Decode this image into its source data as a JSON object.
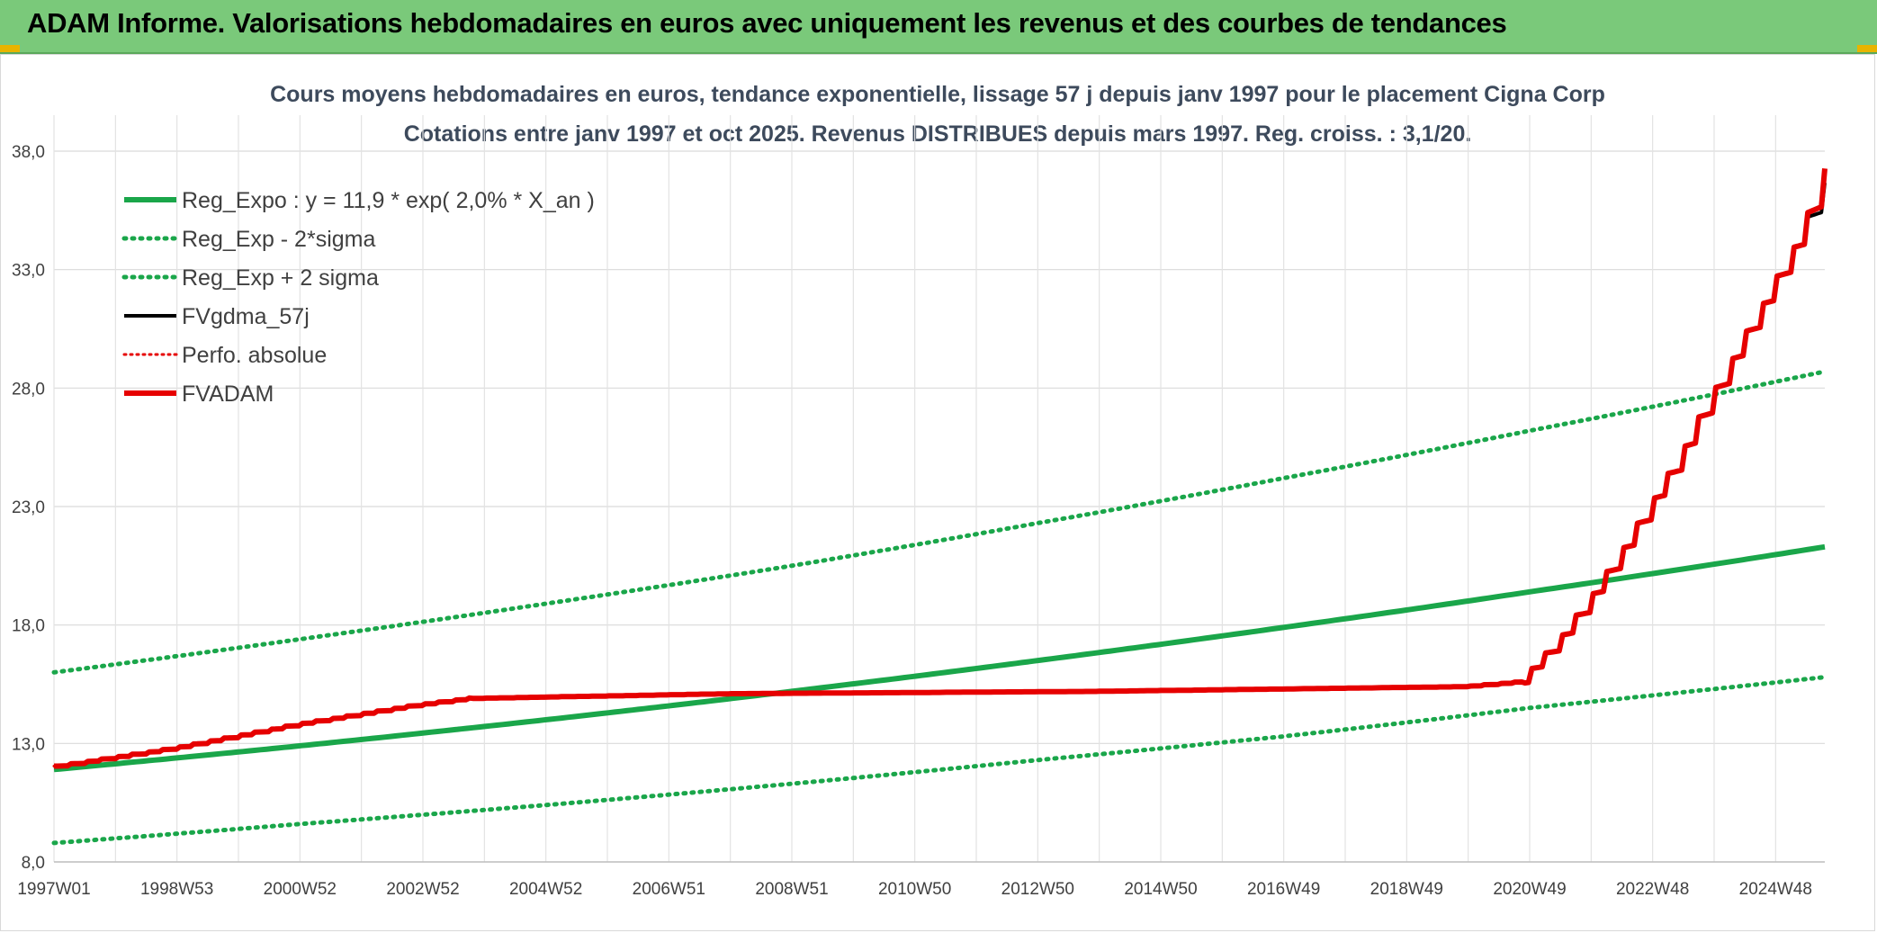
{
  "banner": {
    "title": "ADAM Informe. Valorisations hebdomadaires en euros avec uniquement les revenus et des courbes de tendances"
  },
  "colors": {
    "banner_bg": "#7ac97a",
    "regression": "#1aa64a",
    "fvgdma": "#000000",
    "perfo": "#e60000",
    "fvadam": "#e60000",
    "accent_corner": "#e8b400"
  },
  "chart_data": {
    "type": "line",
    "title_line1": "Cours moyens hebdomadaires en euros, tendance exponentielle, lissage 57 j depuis janv 1997 pour le placement Cigna Corp",
    "title_line2": "Cotations entre janv 1997 et oct 2025. Revenus DISTRIBUES depuis mars 1997. Reg. croiss. : 3,1/20.",
    "xlabel": "",
    "ylabel": "",
    "ylim": [
      8.0,
      38.0
    ],
    "yticks": [
      "8,0",
      "13,0",
      "18,0",
      "23,0",
      "28,0",
      "33,0",
      "38,0"
    ],
    "xlim": [
      1997.0,
      2025.8
    ],
    "xticks": [
      "1997W01",
      "1998W53",
      "2000W52",
      "2002W52",
      "2004W52",
      "2006W51",
      "2008W51",
      "2010W50",
      "2012W50",
      "2014W50",
      "2016W49",
      "2018W49",
      "2020W49",
      "2022W48",
      "2024W48"
    ],
    "grid": true,
    "legend_position": "top-left",
    "series": [
      {
        "name": "Reg_Expo : y = 11,9 * exp( 2,0% *  X_an )",
        "style": "solid",
        "color": "#1aa64a",
        "x": [
          1997.0,
          2001.0,
          2005.0,
          2009.0,
          2013.0,
          2017.0,
          2021.0,
          2025.8
        ],
        "y": [
          11.9,
          12.9,
          14.0,
          15.2,
          16.5,
          17.9,
          19.4,
          21.3
        ]
      },
      {
        "name": "Reg_Exp - 2*sigma",
        "style": "dotted",
        "color": "#1aa64a",
        "x": [
          1997.0,
          2001.0,
          2005.0,
          2009.0,
          2013.0,
          2017.0,
          2021.0,
          2025.8
        ],
        "y": [
          8.8,
          9.6,
          10.4,
          11.3,
          12.3,
          13.3,
          14.5,
          15.8
        ]
      },
      {
        "name": "Reg_Exp + 2 sigma",
        "style": "dotted",
        "color": "#1aa64a",
        "x": [
          1997.0,
          2001.0,
          2005.0,
          2009.0,
          2013.0,
          2017.0,
          2021.0,
          2025.8
        ],
        "y": [
          16.0,
          17.4,
          18.9,
          20.5,
          22.3,
          24.2,
          26.2,
          28.7
        ]
      },
      {
        "name": "FVgdma_57j",
        "style": "solid",
        "color": "#000000",
        "x": [
          1997.0,
          1999.0,
          2001.0,
          2002.9,
          2003.8,
          2008.0,
          2014.0,
          2020.0,
          2020.9,
          2021.5,
          2022.0,
          2022.5,
          2023.0,
          2023.5,
          2024.0,
          2024.5,
          2025.0,
          2025.5,
          2025.8
        ],
        "y": [
          12.0,
          12.8,
          13.8,
          14.6,
          14.9,
          15.1,
          15.2,
          15.4,
          15.6,
          17.2,
          18.9,
          20.8,
          22.9,
          25.0,
          27.5,
          29.9,
          32.2,
          34.6,
          36.3
        ]
      },
      {
        "name": "Perfo. absolue",
        "style": "dotted",
        "color": "#e60000",
        "x": [
          1997.0,
          1999.0,
          2001.0,
          2002.9,
          2003.8,
          2008.0,
          2014.0,
          2020.0,
          2020.9,
          2021.5,
          2022.0,
          2022.5,
          2023.0,
          2023.5,
          2024.0,
          2024.5,
          2025.0,
          2025.5,
          2025.8
        ],
        "y": [
          12.0,
          12.8,
          13.8,
          14.6,
          14.9,
          15.1,
          15.2,
          15.4,
          15.6,
          17.2,
          18.9,
          20.8,
          22.9,
          25.0,
          27.5,
          29.9,
          32.2,
          34.6,
          36.8
        ]
      },
      {
        "name": "FVADAM",
        "style": "solid",
        "color": "#e60000",
        "x": [
          1997.0,
          1999.0,
          2001.0,
          2002.9,
          2003.8,
          2008.0,
          2014.0,
          2020.0,
          2020.9,
          2021.5,
          2022.0,
          2022.5,
          2023.0,
          2023.5,
          2024.0,
          2024.5,
          2025.0,
          2025.5,
          2025.8
        ],
        "y": [
          12.0,
          12.8,
          13.8,
          14.6,
          14.9,
          15.1,
          15.2,
          15.4,
          15.6,
          17.2,
          18.9,
          20.8,
          22.9,
          25.0,
          27.5,
          29.9,
          32.2,
          34.6,
          36.8
        ]
      }
    ]
  }
}
